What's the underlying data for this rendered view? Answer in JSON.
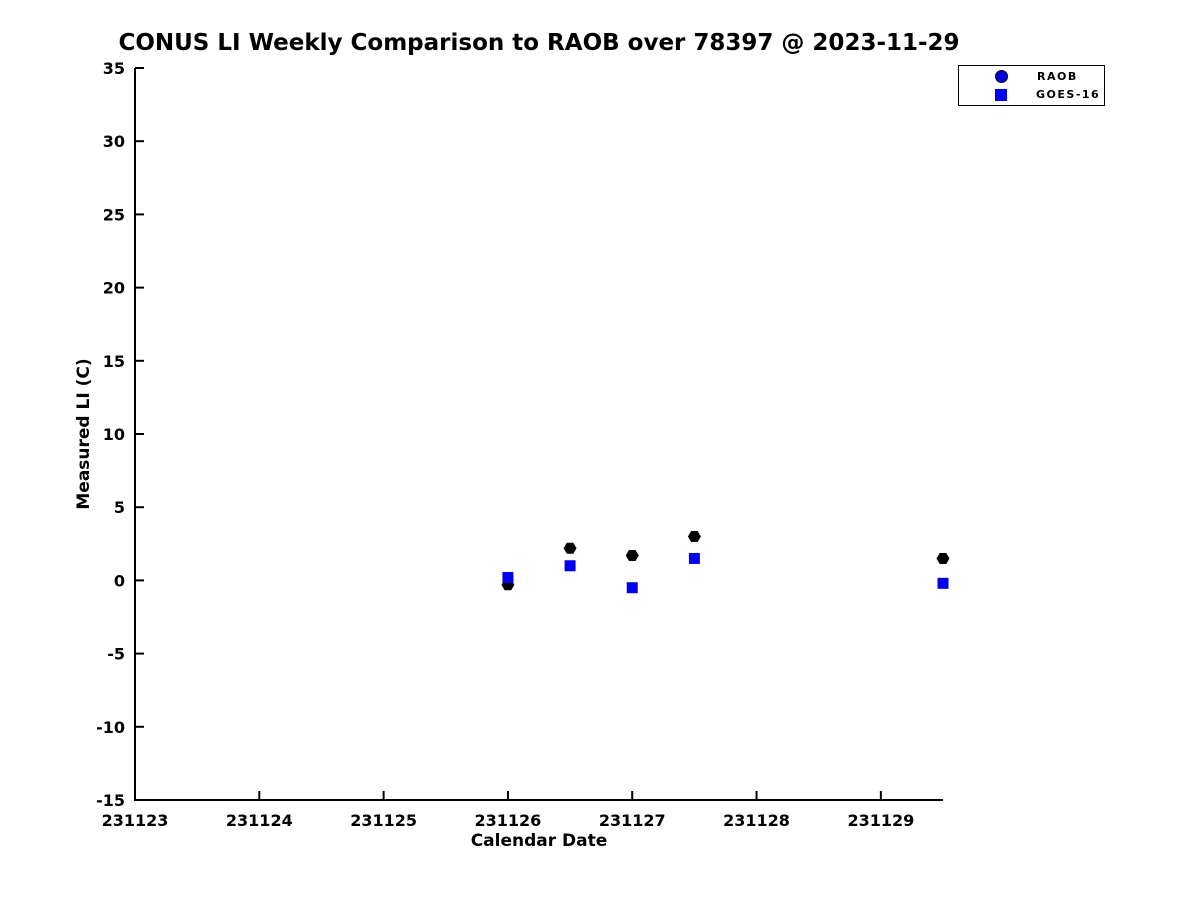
{
  "chart_data": {
    "type": "scatter",
    "title": "CONUS LI Weekly Comparison to RAOB over 78397 @ 2023-11-29",
    "xlabel": "Calendar Date",
    "ylabel": "Measured LI (C)",
    "xlim": [
      231123,
      231129.5
    ],
    "ylim": [
      -15,
      35
    ],
    "xticks": [
      231123,
      231124,
      231125,
      231126,
      231127,
      231128,
      231129
    ],
    "yticks": [
      -15,
      -10,
      -5,
      0,
      5,
      10,
      15,
      20,
      25,
      30,
      35
    ],
    "grid": false,
    "legend_position": "top-right",
    "axis_color": "#000000",
    "series": [
      {
        "name": "RAOB",
        "marker": "hexagon",
        "color": "#000000",
        "legend_marker_color": "#0000dd",
        "x": [
          231126,
          231126.5,
          231127,
          231127.5,
          231129.5
        ],
        "y": [
          -0.3,
          2.2,
          1.7,
          3.0,
          1.5
        ]
      },
      {
        "name": "GOES-16",
        "marker": "square",
        "color": "#0000ee",
        "legend_marker_color": "#0000ee",
        "x": [
          231126,
          231126.5,
          231127,
          231127.5,
          231129.5
        ],
        "y": [
          0.2,
          1.0,
          -0.5,
          1.5,
          -0.2
        ]
      }
    ]
  }
}
